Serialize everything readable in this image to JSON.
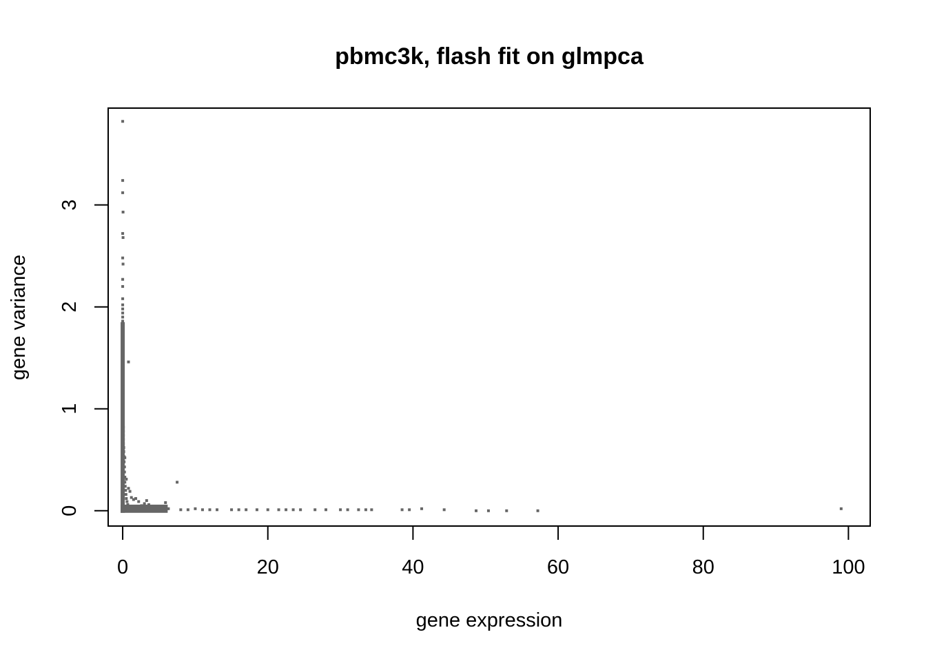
{
  "chart_data": {
    "type": "scatter",
    "title": "pbmc3k, flash fit on glmpca",
    "xlabel": "gene expression",
    "ylabel": "gene variance",
    "xlim": [
      -2,
      103
    ],
    "ylim": [
      -0.15,
      3.95
    ],
    "xticks": [
      0,
      20,
      40,
      60,
      80,
      100
    ],
    "yticks": [
      0,
      1,
      2,
      3
    ],
    "grid": false,
    "legend": "none",
    "point_color": "#666666",
    "series": [
      {
        "values": [
          [
            0.0,
            3.82
          ],
          [
            0.0,
            3.24
          ],
          [
            0.0,
            3.12
          ],
          [
            0.05,
            2.93
          ],
          [
            0.0,
            2.72
          ],
          [
            0.05,
            2.68
          ],
          [
            0.0,
            2.48
          ],
          [
            0.05,
            2.42
          ],
          [
            0.0,
            2.27
          ],
          [
            0.0,
            2.2
          ],
          [
            0.0,
            2.08
          ],
          [
            0.0,
            2.02
          ],
          [
            0.0,
            1.98
          ],
          [
            0.0,
            1.94
          ],
          [
            0.0,
            1.9
          ],
          [
            0.0,
            1.86
          ],
          [
            0.0,
            1.82
          ],
          [
            0.0,
            1.78
          ],
          [
            0.0,
            1.74
          ],
          [
            0.0,
            1.7
          ],
          [
            0.0,
            1.66
          ],
          [
            0.0,
            1.62
          ],
          [
            0.0,
            1.58
          ],
          [
            0.0,
            1.54
          ],
          [
            0.0,
            1.5
          ],
          [
            0.0,
            1.46
          ],
          [
            0.0,
            1.42
          ],
          [
            0.0,
            1.38
          ],
          [
            0.0,
            1.34
          ],
          [
            0.0,
            1.3
          ],
          [
            0.05,
            1.26
          ],
          [
            0.05,
            1.22
          ],
          [
            0.05,
            1.18
          ],
          [
            0.05,
            1.14
          ],
          [
            0.05,
            1.1
          ],
          [
            0.05,
            1.06
          ],
          [
            0.05,
            1.02
          ],
          [
            0.05,
            0.98
          ],
          [
            0.05,
            0.94
          ],
          [
            0.05,
            0.9
          ],
          [
            0.05,
            0.86
          ],
          [
            0.1,
            0.82
          ],
          [
            0.1,
            0.78
          ],
          [
            0.1,
            0.74
          ],
          [
            0.1,
            0.7
          ],
          [
            0.1,
            0.66
          ],
          [
            0.15,
            0.62
          ],
          [
            0.15,
            0.58
          ],
          [
            0.2,
            0.53
          ],
          [
            0.2,
            0.48
          ],
          [
            0.25,
            0.43
          ],
          [
            0.25,
            0.38
          ],
          [
            0.3,
            0.33
          ],
          [
            0.3,
            0.28
          ],
          [
            0.35,
            0.24
          ],
          [
            0.4,
            0.2
          ],
          [
            0.45,
            0.16
          ],
          [
            0.5,
            0.12
          ],
          [
            0.6,
            0.09
          ],
          [
            0.7,
            0.06
          ],
          [
            0.8,
            1.46
          ],
          [
            0.5,
            0.31
          ],
          [
            0.3,
            0.52
          ],
          [
            0.8,
            0.22
          ],
          [
            1.0,
            0.19
          ],
          [
            1.2,
            0.13
          ],
          [
            1.5,
            0.11
          ],
          [
            1.8,
            0.12
          ],
          [
            2.2,
            0.09
          ],
          [
            2.6,
            0.05
          ],
          [
            3.0,
            0.07
          ],
          [
            3.3,
            0.1
          ],
          [
            3.6,
            0.06
          ],
          [
            4.0,
            0.04
          ],
          [
            4.5,
            0.03
          ],
          [
            5.0,
            0.02
          ],
          [
            5.5,
            0.03
          ],
          [
            5.9,
            0.08
          ],
          [
            6.3,
            0.02
          ],
          [
            7.5,
            0.28
          ],
          [
            8.0,
            0.01
          ],
          [
            9.0,
            0.01
          ],
          [
            10.0,
            0.02
          ],
          [
            11.0,
            0.01
          ],
          [
            12.0,
            0.01
          ],
          [
            13.0,
            0.01
          ],
          [
            15.0,
            0.01
          ],
          [
            16.0,
            0.01
          ],
          [
            17.0,
            0.01
          ],
          [
            18.5,
            0.01
          ],
          [
            20.0,
            0.01
          ],
          [
            21.5,
            0.01
          ],
          [
            22.5,
            0.01
          ],
          [
            23.5,
            0.01
          ],
          [
            24.5,
            0.01
          ],
          [
            26.5,
            0.01
          ],
          [
            28.0,
            0.01
          ],
          [
            30.0,
            0.01
          ],
          [
            31.0,
            0.01
          ],
          [
            32.5,
            0.01
          ],
          [
            33.5,
            0.01
          ],
          [
            34.3,
            0.01
          ],
          [
            38.5,
            0.01
          ],
          [
            39.5,
            0.01
          ],
          [
            41.2,
            0.02
          ],
          [
            44.3,
            0.01
          ],
          [
            48.7,
            0.0
          ],
          [
            50.4,
            0.0
          ],
          [
            52.9,
            0.0
          ],
          [
            57.2,
            0.0
          ],
          [
            99.0,
            0.02
          ]
        ]
      }
    ]
  }
}
